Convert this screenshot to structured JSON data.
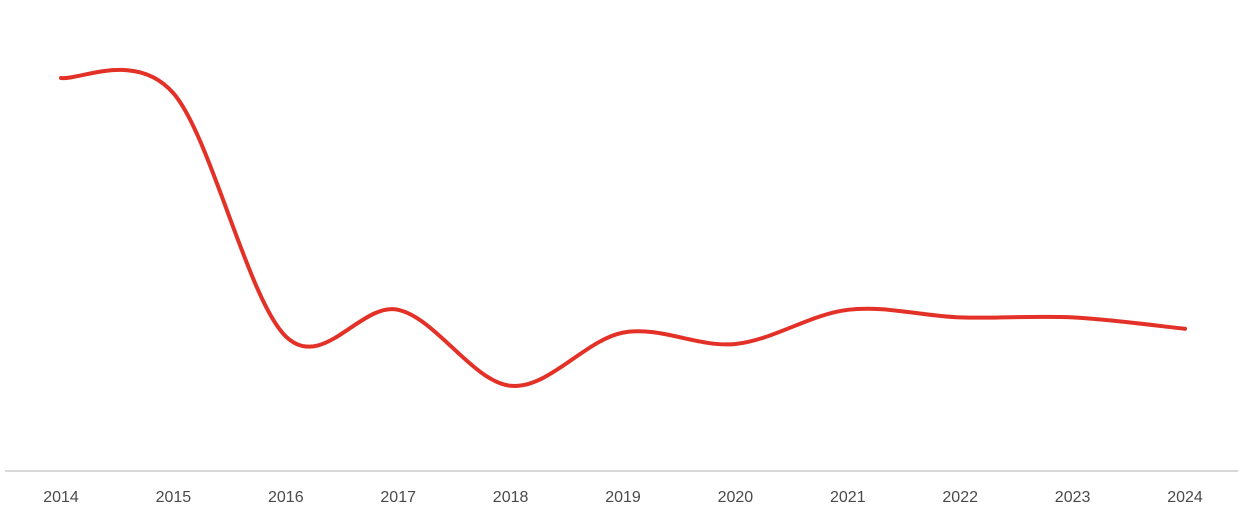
{
  "chart_data": {
    "type": "line",
    "title": "",
    "xlabel": "",
    "ylabel": "",
    "categories": [
      "2014",
      "2015",
      "2016",
      "2017",
      "2018",
      "2019",
      "2020",
      "2021",
      "2022",
      "2023",
      "2024"
    ],
    "series": [
      {
        "values": [
          0.9,
          0.86,
          0.22,
          0.29,
          0.09,
          0.23,
          0.2,
          0.29,
          0.27,
          0.27,
          0.24
        ],
        "color": "#e33128"
      }
    ],
    "ylim": [
      0,
      1
    ],
    "grid": false,
    "y_axis_labels": false,
    "legend": "none",
    "colors": {
      "line": "#e33128",
      "axis": "#cccccc",
      "tick_text": "#4a4a4a",
      "background": "#ffffff"
    }
  }
}
